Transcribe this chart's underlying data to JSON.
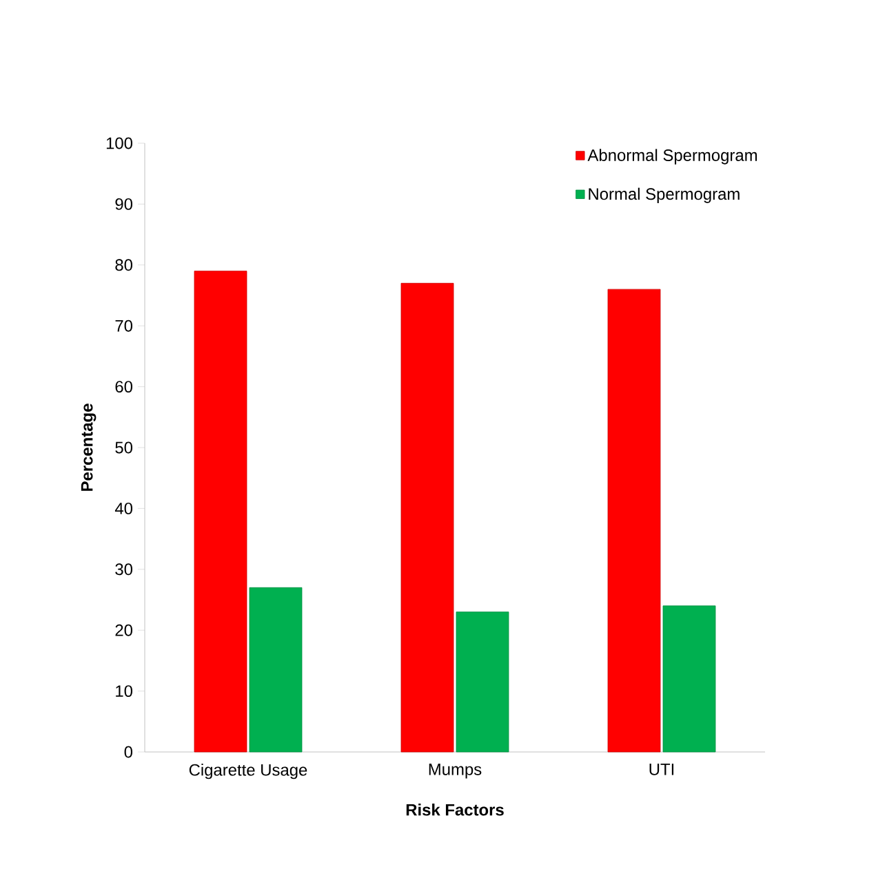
{
  "chart_data": {
    "type": "bar",
    "xlabel": "Risk Factors",
    "ylabel": "Percentage",
    "categories": [
      "Cigarette Usage",
      "Mumps",
      "UTI"
    ],
    "series": [
      {
        "name": "Abnormal Spermogram",
        "color": "#ff0000",
        "values": [
          79,
          77,
          76
        ]
      },
      {
        "name": "Normal Spermogram",
        "color": "#00b050",
        "values": [
          27,
          23,
          24
        ]
      }
    ],
    "ylim": [
      0,
      100
    ],
    "yticks": [
      0,
      10,
      20,
      30,
      40,
      50,
      60,
      70,
      80,
      90,
      100
    ],
    "grid": false,
    "legend": "top right"
  }
}
